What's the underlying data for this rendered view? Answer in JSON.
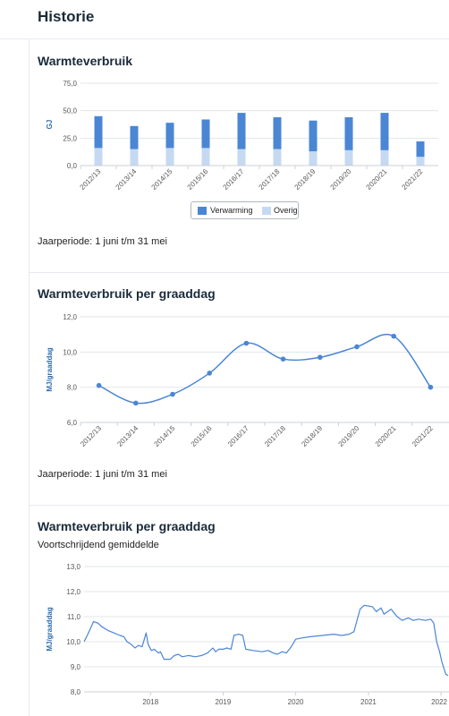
{
  "header": {
    "title": "Historie"
  },
  "sections": [
    {
      "title": "Warmteverbruik",
      "subtitle": "",
      "note": "Jaarperiode: 1 juni t/m 31 mei"
    },
    {
      "title": "Warmteverbruik per graaddag",
      "subtitle": "",
      "note": "Jaarperiode: 1 juni t/m 31 mei"
    },
    {
      "title": "Warmteverbruik per graaddag",
      "subtitle": "Voortschrijdend gemiddelde",
      "note": ""
    }
  ],
  "colors": {
    "primary": "#4a86d4",
    "secondary": "#c5d9f1",
    "grid": "#e3e6ea"
  },
  "chart_data": [
    {
      "type": "bar",
      "stacked": true,
      "categories": [
        "2012/13",
        "2013/14",
        "2014/15",
        "2015/16",
        "2016/17",
        "2017/18",
        "2018/19",
        "2019/20",
        "2020/21",
        "2021/22"
      ],
      "series": [
        {
          "name": "Verwarming",
          "values": [
            29,
            21,
            23,
            26,
            33,
            29,
            28,
            30,
            34,
            14
          ],
          "color": "#4a86d4"
        },
        {
          "name": "Overig",
          "values": [
            16,
            15,
            16,
            16,
            15,
            15,
            13,
            14,
            14,
            8
          ],
          "color": "#c5d9f1"
        }
      ],
      "ylabel": "GJ",
      "yticks": [
        "0,0",
        "25,0",
        "50,0",
        "75,0"
      ],
      "ylim": [
        0,
        75
      ],
      "legend_position": "bottom"
    },
    {
      "type": "line",
      "categories": [
        "2012/13",
        "2013/14",
        "2014/15",
        "2015/16",
        "2016/17",
        "2017/18",
        "2018/19",
        "2019/20",
        "2020/21",
        "2021/22"
      ],
      "values": [
        8.1,
        7.1,
        7.6,
        8.8,
        10.5,
        9.6,
        9.7,
        10.3,
        10.9,
        8.0
      ],
      "ylabel": "MJ/graaddag",
      "yticks": [
        "6,0",
        "8,0",
        "10,0",
        "12,0"
      ],
      "ylim": [
        6,
        12
      ],
      "color": "#4a86d4"
    },
    {
      "type": "line",
      "xticks": [
        "2018",
        "2019",
        "2020",
        "2021",
        "2022"
      ],
      "ylabel": "MJ/graaddag",
      "yticks": [
        "8,0",
        "9,0",
        "10,0",
        "11,0",
        "12,0",
        "13,0"
      ],
      "ylim": [
        8,
        13
      ],
      "color": "#4a86d4",
      "points": [
        [
          "2017-02-01",
          10.0
        ],
        [
          "2017-02-20",
          10.3
        ],
        [
          "2017-03-20",
          10.8
        ],
        [
          "2017-04-10",
          10.75
        ],
        [
          "2017-05-01",
          10.6
        ],
        [
          "2017-06-01",
          10.45
        ],
        [
          "2017-07-01",
          10.35
        ],
        [
          "2017-08-01",
          10.25
        ],
        [
          "2017-08-20",
          10.2
        ],
        [
          "2017-09-05",
          10.0
        ],
        [
          "2017-09-25",
          9.9
        ],
        [
          "2017-10-15",
          9.75
        ],
        [
          "2017-11-01",
          9.85
        ],
        [
          "2017-11-20",
          9.8
        ],
        [
          "2017-12-10",
          10.35
        ],
        [
          "2017-12-20",
          9.9
        ],
        [
          "2018-01-05",
          9.65
        ],
        [
          "2018-01-20",
          9.7
        ],
        [
          "2018-02-10",
          9.55
        ],
        [
          "2018-02-20",
          9.6
        ],
        [
          "2018-03-10",
          9.3
        ],
        [
          "2018-04-10",
          9.3
        ],
        [
          "2018-05-01",
          9.45
        ],
        [
          "2018-05-20",
          9.5
        ],
        [
          "2018-06-10",
          9.4
        ],
        [
          "2018-07-10",
          9.45
        ],
        [
          "2018-08-15",
          9.4
        ],
        [
          "2018-09-15",
          9.45
        ],
        [
          "2018-10-15",
          9.55
        ],
        [
          "2018-11-10",
          9.75
        ],
        [
          "2018-11-25",
          9.6
        ],
        [
          "2018-12-10",
          9.7
        ],
        [
          "2019-01-01",
          9.7
        ],
        [
          "2019-01-20",
          9.75
        ],
        [
          "2019-02-10",
          9.7
        ],
        [
          "2019-02-25",
          10.25
        ],
        [
          "2019-03-20",
          10.3
        ],
        [
          "2019-04-10",
          10.25
        ],
        [
          "2019-04-25",
          9.7
        ],
        [
          "2019-06-01",
          9.65
        ],
        [
          "2019-07-15",
          9.6
        ],
        [
          "2019-08-15",
          9.65
        ],
        [
          "2019-09-10",
          9.55
        ],
        [
          "2019-10-01",
          9.5
        ],
        [
          "2019-10-25",
          9.6
        ],
        [
          "2019-11-15",
          9.55
        ],
        [
          "2019-12-10",
          9.8
        ],
        [
          "2020-01-01",
          10.1
        ],
        [
          "2020-02-01",
          10.15
        ],
        [
          "2020-03-15",
          10.2
        ],
        [
          "2020-05-15",
          10.25
        ],
        [
          "2020-07-10",
          10.3
        ],
        [
          "2020-08-20",
          10.25
        ],
        [
          "2020-09-25",
          10.3
        ],
        [
          "2020-10-20",
          10.4
        ],
        [
          "2020-11-20",
          11.3
        ],
        [
          "2020-12-10",
          11.45
        ],
        [
          "2021-01-20",
          11.4
        ],
        [
          "2021-02-10",
          11.2
        ],
        [
          "2021-03-05",
          11.35
        ],
        [
          "2021-03-20",
          11.1
        ],
        [
          "2021-04-25",
          11.3
        ],
        [
          "2021-05-25",
          11.0
        ],
        [
          "2021-06-20",
          10.85
        ],
        [
          "2021-07-20",
          10.95
        ],
        [
          "2021-08-15",
          10.85
        ],
        [
          "2021-09-10",
          10.9
        ],
        [
          "2021-10-15",
          10.85
        ],
        [
          "2021-11-10",
          10.9
        ],
        [
          "2021-11-25",
          10.75
        ],
        [
          "2021-12-10",
          10.0
        ],
        [
          "2021-12-25",
          9.6
        ],
        [
          "2022-01-05",
          9.2
        ],
        [
          "2022-01-15",
          8.95
        ],
        [
          "2022-01-25",
          8.7
        ],
        [
          "2022-02-05",
          8.65
        ]
      ]
    }
  ]
}
